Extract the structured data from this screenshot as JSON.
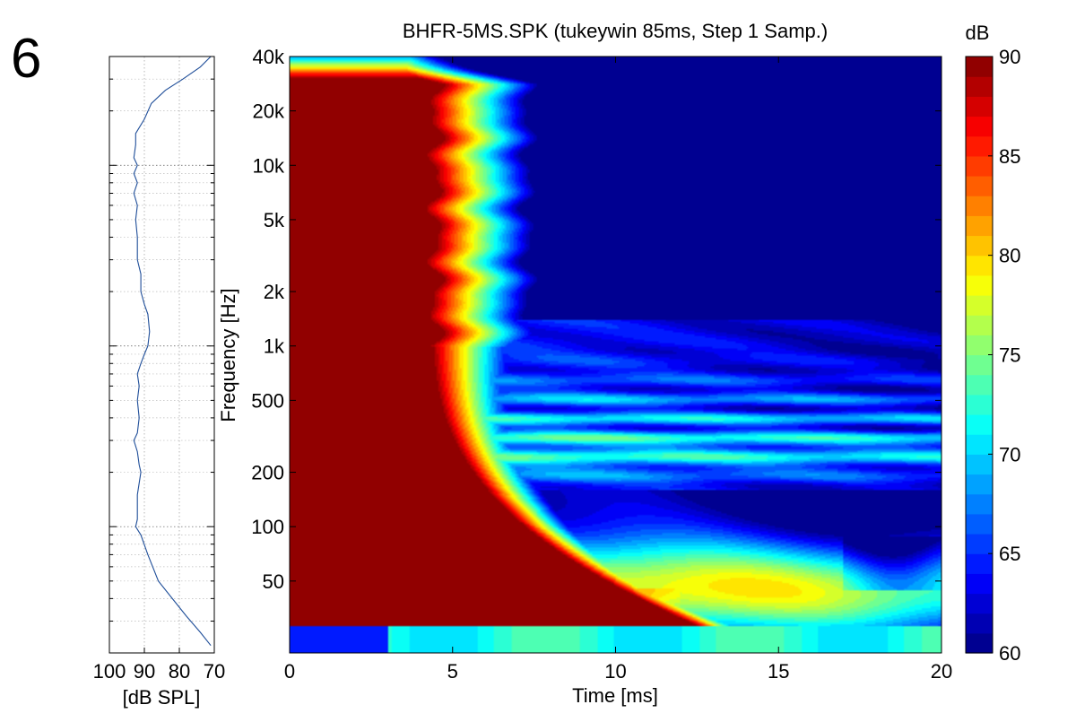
{
  "figure": {
    "panel_number": "6"
  },
  "chart_data": [
    {
      "type": "line",
      "xlabel": "[dB SPL]",
      "x_ticks": [
        100,
        90,
        80,
        70
      ],
      "x_tick_labels": [
        "100",
        "90",
        "80",
        "70"
      ],
      "xlim": [
        100,
        70
      ],
      "ylim_hz": [
        20,
        40000
      ],
      "y_scale": "log",
      "grid": true,
      "series": [
        {
          "color": "#1f4e99",
          "points": [
            [
              71,
              40000
            ],
            [
              74,
              35000
            ],
            [
              79,
              30000
            ],
            [
              84,
              26000
            ],
            [
              88,
              22000
            ],
            [
              90,
              18000
            ],
            [
              92.5,
              15000
            ],
            [
              92.5,
              13000
            ],
            [
              93,
              11000
            ],
            [
              92,
              10000
            ],
            [
              93,
              9000
            ],
            [
              92,
              8000
            ],
            [
              93,
              7000
            ],
            [
              92,
              6000
            ],
            [
              92.5,
              5000
            ],
            [
              92,
              4000
            ],
            [
              92,
              3000
            ],
            [
              91,
              2500
            ],
            [
              91,
              2000
            ],
            [
              90,
              1700
            ],
            [
              89,
              1500
            ],
            [
              88.5,
              1200
            ],
            [
              89,
              1000
            ],
            [
              90,
              900
            ],
            [
              91,
              800
            ],
            [
              92,
              700
            ],
            [
              91.5,
              600
            ],
            [
              92,
              500
            ],
            [
              91.5,
              400
            ],
            [
              92,
              330
            ],
            [
              93,
              300
            ],
            [
              92,
              260
            ],
            [
              91.5,
              220
            ],
            [
              91,
              200
            ],
            [
              92,
              150
            ],
            [
              92,
              110
            ],
            [
              92.5,
              100
            ],
            [
              91,
              90
            ],
            [
              89,
              70
            ],
            [
              86,
              50
            ],
            [
              82,
              40
            ],
            [
              78,
              32
            ],
            [
              74,
              26
            ],
            [
              71,
              22
            ]
          ]
        }
      ]
    },
    {
      "type": "heatmap",
      "title": "BHFR-5MS.SPK (tukeywin 85ms, Step 1 Samp.)",
      "xlabel": "Time [ms]",
      "ylabel": "Frequency [Hz]",
      "xlim": [
        0,
        20
      ],
      "ylim_hz": [
        20,
        40000
      ],
      "y_scale": "log",
      "x_ticks": [
        0,
        5,
        10,
        15,
        20
      ],
      "x_tick_labels": [
        "0",
        "5",
        "10",
        "15",
        "20"
      ],
      "y_ticks": [
        50,
        100,
        200,
        500,
        1000,
        2000,
        5000,
        10000,
        20000,
        40000
      ],
      "y_tick_labels": [
        "50",
        "100",
        "200",
        "500",
        "1k",
        "2k",
        "5k",
        "10k",
        "20k",
        "40k"
      ],
      "colorbar": {
        "label": "dB",
        "range": [
          60,
          90
        ],
        "ticks": [
          60,
          65,
          70,
          75,
          80,
          85,
          90
        ],
        "tick_labels": [
          "60",
          "65",
          "70",
          "75",
          "80",
          "85",
          "90"
        ],
        "colormap": "jet",
        "levels": 30
      }
    }
  ]
}
